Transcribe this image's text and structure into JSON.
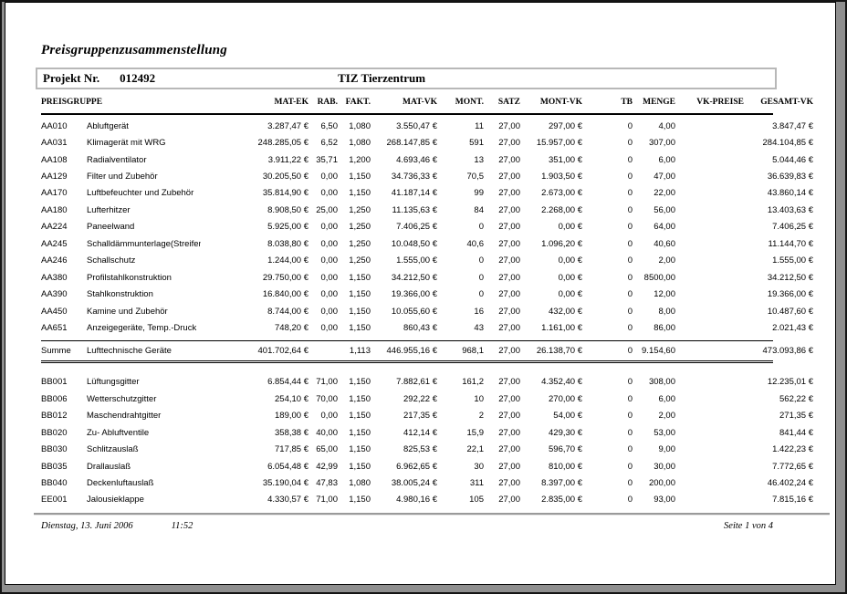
{
  "title": "Preisgruppenzusammenstellung",
  "project": {
    "label": "Projekt Nr.",
    "number": "012492",
    "name": "TIZ Tierzentrum"
  },
  "table": {
    "headers": [
      "PREISGRUPPE",
      "MAT-EK",
      "RAB.",
      "FAKT.",
      "MAT-VK",
      "MONT.",
      "SATZ",
      "MONT-VK",
      "TB",
      "MENGE",
      "VK-PREISE",
      "GESAMT-VK"
    ],
    "group1": [
      [
        "AA010",
        "Abluftgerät",
        "3.287,47 €",
        "6,50",
        "1,080",
        "3.550,47 €",
        "11",
        "27,00",
        "297,00 €",
        "0",
        "4,00",
        "",
        "3.847,47 €"
      ],
      [
        "AA031",
        "Klimagerät mit WRG",
        "248.285,05 €",
        "6,52",
        "1,080",
        "268.147,85 €",
        "591",
        "27,00",
        "15.957,00 €",
        "0",
        "307,00",
        "",
        "284.104,85 €"
      ],
      [
        "AA108",
        "Radialventilator",
        "3.911,22 €",
        "35,71",
        "1,200",
        "4.693,46 €",
        "13",
        "27,00",
        "351,00 €",
        "0",
        "6,00",
        "",
        "5.044,46 €"
      ],
      [
        "AA129",
        "Filter und Zubehör",
        "30.205,50 €",
        "0,00",
        "1,150",
        "34.736,33 €",
        "70,5",
        "27,00",
        "1.903,50 €",
        "0",
        "47,00",
        "",
        "36.639,83 €"
      ],
      [
        "AA170",
        "Luftbefeuchter und Zubehör",
        "35.814,90 €",
        "0,00",
        "1,150",
        "41.187,14 €",
        "99",
        "27,00",
        "2.673,00 €",
        "0",
        "22,00",
        "",
        "43.860,14 €"
      ],
      [
        "AA180",
        "Lufterhitzer",
        "8.908,50 €",
        "25,00",
        "1,250",
        "11.135,63 €",
        "84",
        "27,00",
        "2.268,00 €",
        "0",
        "56,00",
        "",
        "13.403,63 €"
      ],
      [
        "AA224",
        "Paneelwand",
        "5.925,00 €",
        "0,00",
        "1,250",
        "7.406,25 €",
        "0",
        "27,00",
        "0,00 €",
        "0",
        "64,00",
        "",
        "7.406,25 €"
      ],
      [
        "AA245",
        "Schalldämmunterlage(Streifen)",
        "8.038,80 €",
        "0,00",
        "1,250",
        "10.048,50 €",
        "40,6",
        "27,00",
        "1.096,20 €",
        "0",
        "40,60",
        "",
        "11.144,70 €"
      ],
      [
        "AA246",
        "Schallschutz",
        "1.244,00 €",
        "0,00",
        "1,250",
        "1.555,00 €",
        "0",
        "27,00",
        "0,00 €",
        "0",
        "2,00",
        "",
        "1.555,00 €"
      ],
      [
        "AA380",
        "Profilstahlkonstruktion",
        "29.750,00 €",
        "0,00",
        "1,150",
        "34.212,50 €",
        "0",
        "27,00",
        "0,00 €",
        "0",
        "8500,00",
        "",
        "34.212,50 €"
      ],
      [
        "AA390",
        "Stahlkonstruktion",
        "16.840,00 €",
        "0,00",
        "1,150",
        "19.366,00 €",
        "0",
        "27,00",
        "0,00 €",
        "0",
        "12,00",
        "",
        "19.366,00 €"
      ],
      [
        "AA450",
        "Kamine und Zubehör",
        "8.744,00 €",
        "0,00",
        "1,150",
        "10.055,60 €",
        "16",
        "27,00",
        "432,00 €",
        "0",
        "8,00",
        "",
        "10.487,60 €"
      ],
      [
        "AA651",
        "Anzeigegeräte, Temp.-Druck",
        "748,20 €",
        "0,00",
        "1,150",
        "860,43 €",
        "43",
        "27,00",
        "1.161,00 €",
        "0",
        "86,00",
        "",
        "2.021,43 €"
      ]
    ],
    "summary": [
      [
        "Summe",
        "Lufttechnische Geräte",
        "401.702,64 €",
        "",
        "1,113",
        "446.955,16 €",
        "968,1",
        "27,00",
        "26.138,70 €",
        "0",
        "9.154,60",
        "",
        "473.093,86 €"
      ]
    ],
    "group2": [
      [
        "BB001",
        "Lüftungsgitter",
        "6.854,44 €",
        "71,00",
        "1,150",
        "7.882,61 €",
        "161,2",
        "27,00",
        "4.352,40 €",
        "0",
        "308,00",
        "",
        "12.235,01 €"
      ],
      [
        "BB006",
        "Wetterschutzgitter",
        "254,10 €",
        "70,00",
        "1,150",
        "292,22 €",
        "10",
        "27,00",
        "270,00 €",
        "0",
        "6,00",
        "",
        "562,22 €"
      ],
      [
        "BB012",
        "Maschendrahtgitter",
        "189,00 €",
        "0,00",
        "1,150",
        "217,35 €",
        "2",
        "27,00",
        "54,00 €",
        "0",
        "2,00",
        "",
        "271,35 €"
      ],
      [
        "BB020",
        "Zu- Abluftventile",
        "358,38 €",
        "40,00",
        "1,150",
        "412,14 €",
        "15,9",
        "27,00",
        "429,30 €",
        "0",
        "53,00",
        "",
        "841,44 €"
      ],
      [
        "BB030",
        "Schlitzauslaß",
        "717,85 €",
        "65,00",
        "1,150",
        "825,53 €",
        "22,1",
        "27,00",
        "596,70 €",
        "0",
        "9,00",
        "",
        "1.422,23 €"
      ],
      [
        "BB035",
        "Drallauslaß",
        "6.054,48 €",
        "42,99",
        "1,150",
        "6.962,65 €",
        "30",
        "27,00",
        "810,00 €",
        "0",
        "30,00",
        "",
        "7.772,65 €"
      ],
      [
        "BB040",
        "Deckenluftauslaß",
        "35.190,04 €",
        "47,83",
        "1,080",
        "38.005,24 €",
        "311",
        "27,00",
        "8.397,00 €",
        "0",
        "200,00",
        "",
        "46.402,24 €"
      ],
      [
        "EE001",
        "Jalousieklappe",
        "4.330,57 €",
        "71,00",
        "1,150",
        "4.980,16 €",
        "105",
        "27,00",
        "2.835,00 €",
        "0",
        "93,00",
        "",
        "7.815,16 €"
      ]
    ]
  },
  "footer": {
    "date": "Dienstag, 13. Juni 2006",
    "time": "11:52",
    "page": "Seite 1 von 4"
  },
  "colors": {
    "window_background": "#8f8f8f",
    "page_background": "#ffffff",
    "text": "#000000",
    "box_border": "#b8b8b8"
  }
}
